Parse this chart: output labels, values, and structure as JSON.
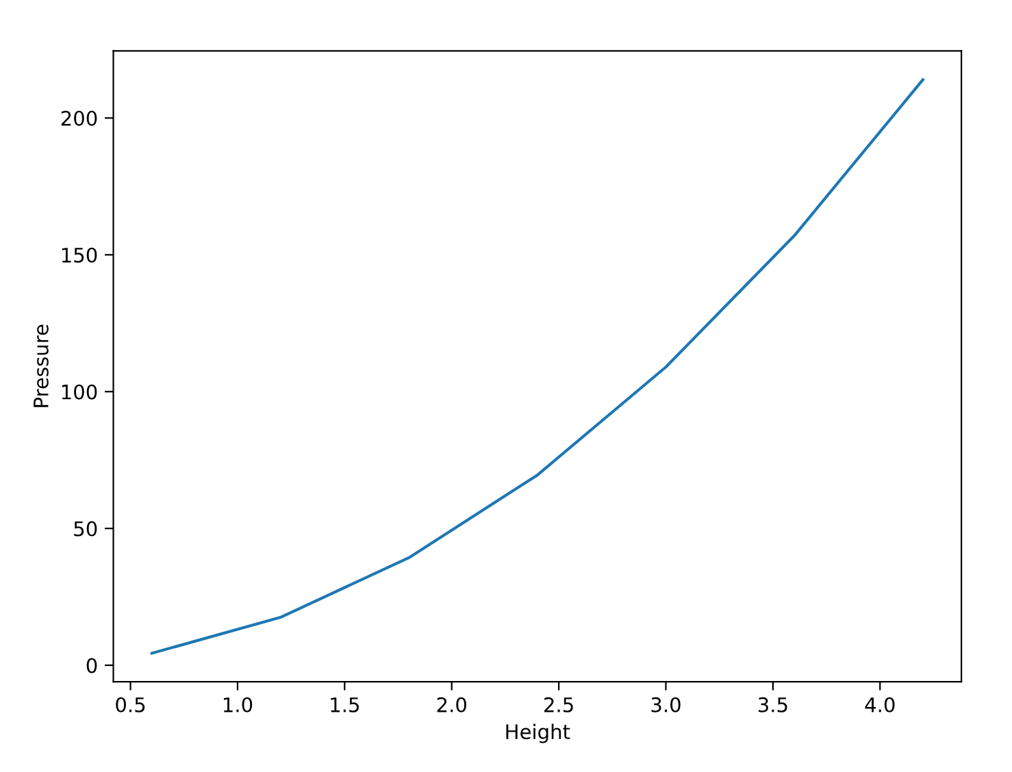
{
  "chart_data": {
    "type": "line",
    "xlabel": "Height",
    "ylabel": "Pressure",
    "x": [
      0.6,
      1.2,
      1.8,
      2.4,
      3.0,
      3.6,
      4.2
    ],
    "series": [
      {
        "color": "#1f77b4",
        "values": [
          4.4,
          17.5,
          39.3,
          69.5,
          109,
          157,
          214
        ]
      }
    ],
    "xlim": [
      0.42,
      4.38
    ],
    "ylim": [
      -6,
      224.5
    ],
    "xticks": [
      {
        "value": 0.5,
        "label": "0.5"
      },
      {
        "value": 1.0,
        "label": "1.0"
      },
      {
        "value": 1.5,
        "label": "1.5"
      },
      {
        "value": 2.0,
        "label": "2.0"
      },
      {
        "value": 2.5,
        "label": "2.5"
      },
      {
        "value": 3.0,
        "label": "3.0"
      },
      {
        "value": 3.5,
        "label": "3.5"
      },
      {
        "value": 4.0,
        "label": "4.0"
      }
    ],
    "yticks": [
      0,
      50,
      100,
      150,
      200
    ],
    "grid": false,
    "marker": "none",
    "line_style": "solid"
  }
}
